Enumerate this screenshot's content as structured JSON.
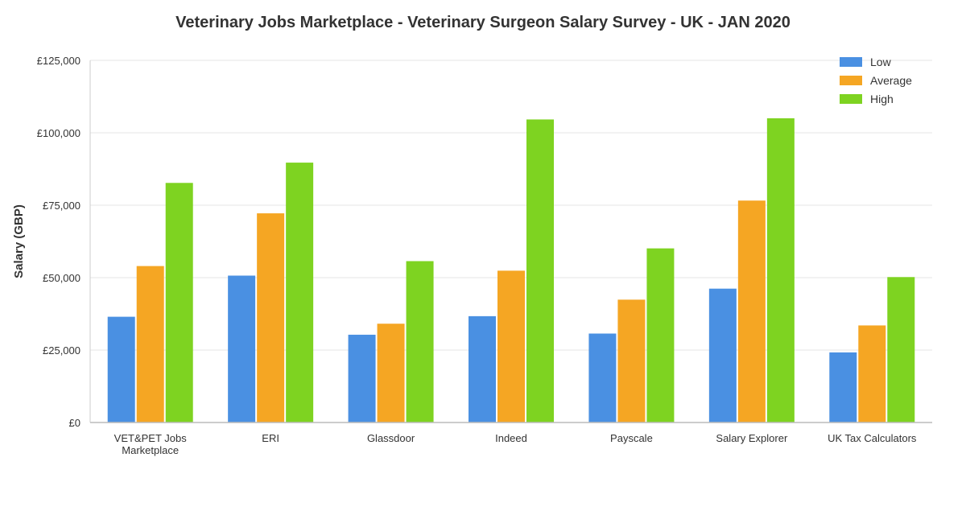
{
  "chart_data": {
    "type": "bar",
    "title": "Veterinary Jobs Marketplace - Veterinary Surgeon Salary Survey - UK - JAN 2020",
    "xlabel": "",
    "ylabel": "Salary (GBP)",
    "ylim": [
      0,
      125000
    ],
    "yticks": [
      {
        "value": 0,
        "label": "£0"
      },
      {
        "value": 25000,
        "label": "£25,000"
      },
      {
        "value": 50000,
        "label": "£50,000"
      },
      {
        "value": 75000,
        "label": "£75,000"
      },
      {
        "value": 100000,
        "label": "£100,000"
      },
      {
        "value": 125000,
        "label": "£125,000"
      }
    ],
    "categories": [
      [
        "VET&PET Jobs",
        "Marketplace"
      ],
      [
        "ERI"
      ],
      [
        "Glassdoor"
      ],
      [
        "Indeed"
      ],
      [
        "Payscale"
      ],
      [
        "Salary Explorer"
      ],
      [
        "UK Tax Calculators"
      ]
    ],
    "series": [
      {
        "name": "Low",
        "color": "#4a90e2",
        "values": [
          36500,
          50700,
          30300,
          36700,
          30700,
          46200,
          24200
        ]
      },
      {
        "name": "Average",
        "color": "#f5a623",
        "values": [
          54000,
          72200,
          34100,
          52400,
          42400,
          76600,
          33500
        ]
      },
      {
        "name": "High",
        "color": "#7ed321",
        "values": [
          82700,
          89700,
          55700,
          104600,
          60100,
          105000,
          50200
        ]
      }
    ],
    "grid": true,
    "legend_position": "top-right"
  }
}
